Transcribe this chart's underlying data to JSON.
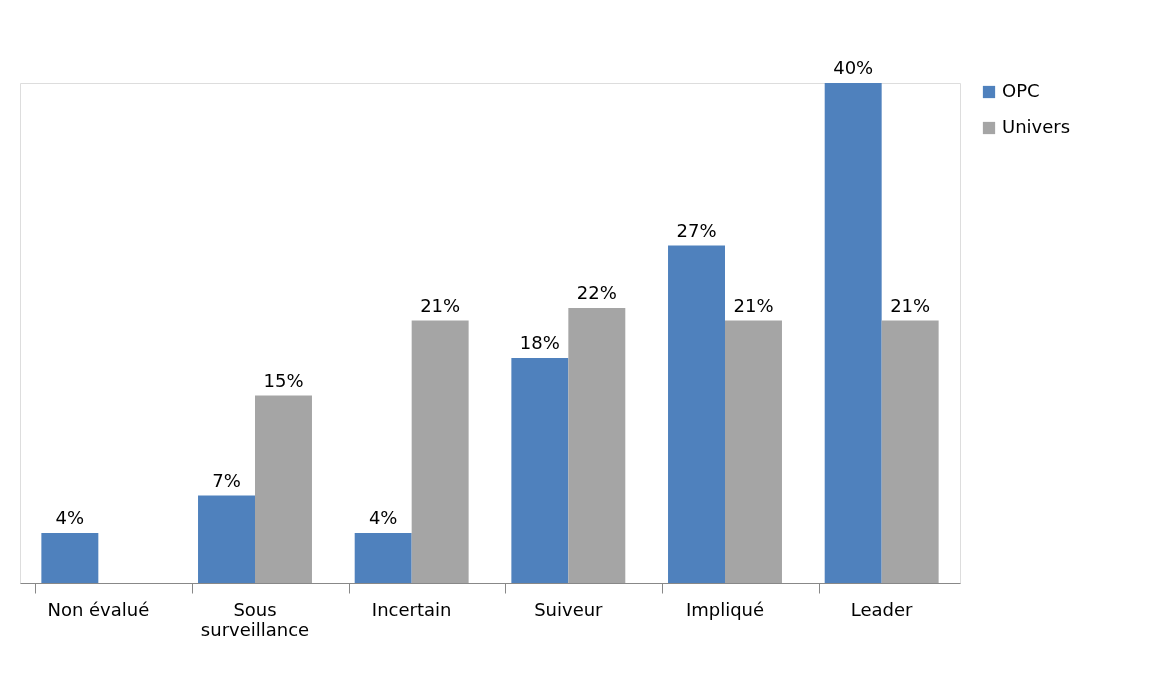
{
  "chart_data": {
    "type": "bar",
    "categories": [
      "Non évalué",
      "Sous surveillance",
      "Incertain",
      "Suiveur",
      "Impliqué",
      "Leader"
    ],
    "series": [
      {
        "name": "OPC",
        "color": "#4f81bd",
        "values": [
          4,
          7,
          4,
          18,
          27,
          40
        ],
        "value_labels": [
          "4%",
          "7%",
          "4%",
          "18%",
          "27%",
          "40%"
        ]
      },
      {
        "name": "Univers",
        "color": "#a5a5a5",
        "values": [
          null,
          15,
          21,
          22,
          21,
          21
        ],
        "value_labels": [
          null,
          "15%",
          "21%",
          "22%",
          "21%",
          "21%"
        ]
      }
    ],
    "legend": "right",
    "grid": false
  }
}
